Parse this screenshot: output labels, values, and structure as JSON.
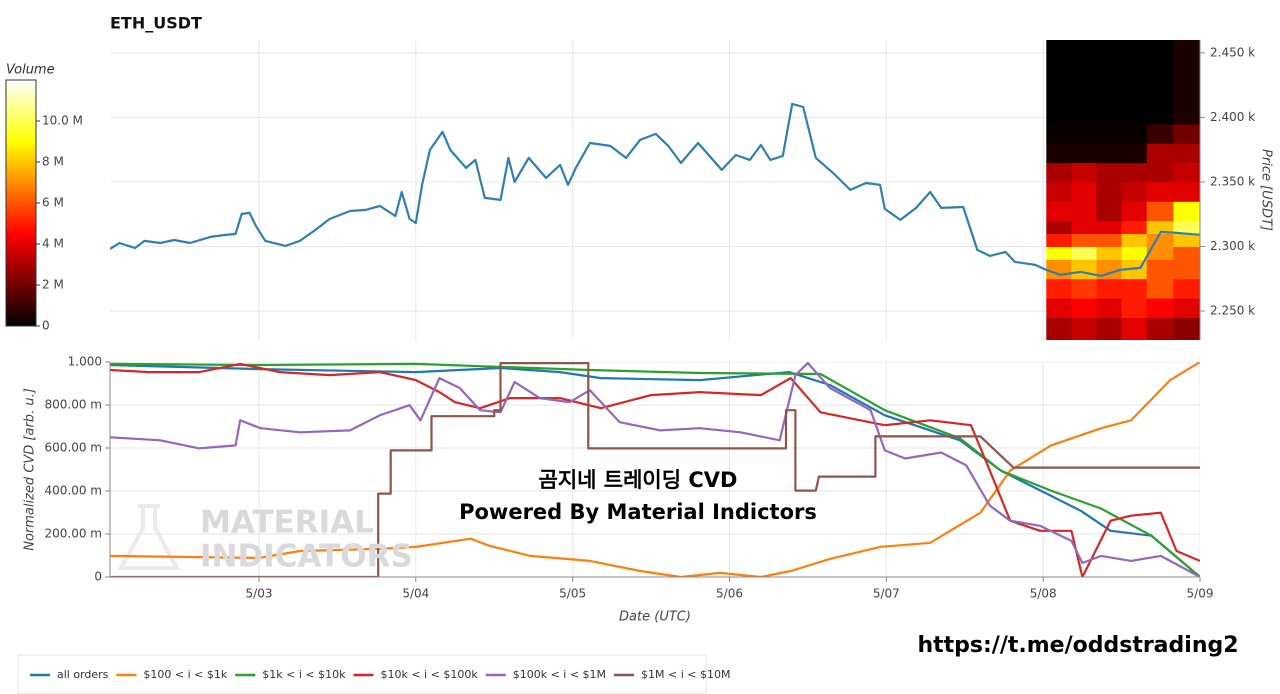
{
  "chart_data": [
    {
      "type": "line",
      "title": "ETH_USDT",
      "y_label": "Price [USDT]",
      "y_axis_side": "right",
      "grid": true,
      "xlim": [
        -0.95,
        6.0
      ],
      "ylim": [
        2227.5,
        2460
      ],
      "yticks": [
        {
          "value": 2250,
          "label": "2.250 k"
        },
        {
          "value": 2300,
          "label": "2.300 k"
        },
        {
          "value": 2350,
          "label": "2.350 k"
        },
        {
          "value": 2400,
          "label": "2.400 k"
        },
        {
          "value": 2450,
          "label": "2.450 k"
        }
      ],
      "heatmap": {
        "colormap": "hot",
        "x": [
          5.02,
          5.18,
          5.34,
          5.5,
          5.66,
          5.83,
          6.0
        ],
        "y": [
          2227.5,
          2245,
          2260,
          2275,
          2290,
          2300,
          2310,
          2320,
          2335,
          2350,
          2365,
          2380,
          2395,
          2460
        ],
        "values": [
          [
            3,
            3.5,
            3,
            4,
            3,
            2.5
          ],
          [
            4,
            4.5,
            4,
            5,
            4.5,
            4
          ],
          [
            5,
            5.5,
            5,
            5,
            6,
            5
          ],
          [
            7,
            8,
            7,
            8,
            6,
            6
          ],
          [
            9,
            10,
            8,
            9,
            7,
            6
          ],
          [
            5,
            6,
            6,
            8,
            7,
            8
          ],
          [
            3,
            4,
            4,
            5,
            8,
            10
          ],
          [
            4,
            4,
            3,
            4,
            6,
            9
          ],
          [
            3.5,
            4,
            3,
            3.5,
            4,
            4
          ],
          [
            3,
            3.5,
            3,
            3,
            3,
            3.5
          ],
          [
            0.5,
            0.5,
            0.5,
            0.5,
            3,
            3
          ],
          [
            0.2,
            0.2,
            0.2,
            0.2,
            1,
            2
          ],
          [
            0,
            0,
            0,
            0,
            0,
            0.5
          ]
        ]
      },
      "colorbar": {
        "label": "Volume",
        "lim": [
          0,
          12
        ],
        "ticks": [
          0,
          {
            "value": 2,
            "label": "2 M"
          },
          {
            "value": 4,
            "label": "4 M"
          },
          {
            "value": 6,
            "label": "6 M"
          },
          {
            "value": 8,
            "label": "8 M"
          },
          {
            "value": 10,
            "label": "10.0 M"
          }
        ]
      },
      "series": [
        {
          "name": "Price",
          "color": "#2f7fb0",
          "x": [
            -0.95,
            -0.89,
            -0.79,
            -0.73,
            -0.63,
            -0.54,
            -0.44,
            -0.31,
            -0.22,
            -0.15,
            -0.11,
            -0.06,
            -0.02,
            0.04,
            0.17,
            0.26,
            0.36,
            0.45,
            0.58,
            0.68,
            0.77,
            0.87,
            0.91,
            0.96,
            1.0,
            1.04,
            1.09,
            1.17,
            1.22,
            1.32,
            1.38,
            1.44,
            1.54,
            1.59,
            1.63,
            1.72,
            1.83,
            1.92,
            1.97,
            2.02,
            2.11,
            2.24,
            2.34,
            2.43,
            2.53,
            2.61,
            2.69,
            2.8,
            2.95,
            3.04,
            3.13,
            3.2,
            3.26,
            3.34,
            3.4,
            3.47,
            3.55,
            3.66,
            3.77,
            3.87,
            3.96,
            3.99,
            4.09,
            4.19,
            4.28,
            4.35,
            4.49,
            4.58,
            4.66,
            4.76,
            4.82,
            4.95,
            5.02,
            5.11,
            5.24,
            5.37,
            5.49,
            5.62,
            5.75,
            5.85,
            6.0
          ],
          "values": [
            2298.1,
            2302.7,
            2298.8,
            2304.3,
            2302.7,
            2305.0,
            2302.7,
            2307.4,
            2308.9,
            2309.7,
            2325.2,
            2326.0,
            2315.9,
            2304.3,
            2300.4,
            2304.3,
            2312.8,
            2321.3,
            2327.5,
            2328.3,
            2331.4,
            2323.6,
            2342.2,
            2321.3,
            2318.2,
            2347.7,
            2374.8,
            2388.8,
            2374.8,
            2360.9,
            2367.1,
            2337.6,
            2336.1,
            2368.6,
            2350.0,
            2368.6,
            2353.1,
            2363.2,
            2347.7,
            2360.9,
            2380.2,
            2377.9,
            2368.6,
            2382.6,
            2387.2,
            2377.9,
            2364.7,
            2380.2,
            2359.3,
            2370.9,
            2367.1,
            2378.7,
            2367.1,
            2370.2,
            2410.5,
            2408.1,
            2368.6,
            2357.0,
            2343.8,
            2349.2,
            2347.7,
            2329.1,
            2320.6,
            2329.9,
            2342.2,
            2329.9,
            2330.6,
            2297.3,
            2292.7,
            2295.8,
            2288.0,
            2285.7,
            2281.8,
            2278.0,
            2280.3,
            2277.2,
            2281.8,
            2283.4,
            2311.3,
            2310.5,
            2309.0
          ]
        }
      ]
    },
    {
      "type": "line",
      "x_label": "Date (UTC)",
      "y_label": "Normalized CVD [arb. u.]",
      "grid": true,
      "legend": "bottom-left",
      "xlim": [
        -0.95,
        6.0
      ],
      "ylim": [
        0,
        1
      ],
      "xticks": [
        {
          "value": 0,
          "label": "5/03"
        },
        {
          "value": 1,
          "label": "5/04"
        },
        {
          "value": 2,
          "label": "5/05"
        },
        {
          "value": 3,
          "label": "5/06"
        },
        {
          "value": 4,
          "label": "5/07"
        },
        {
          "value": 5,
          "label": "5/08"
        },
        {
          "value": 6,
          "label": "5/09"
        }
      ],
      "yticks": [
        0,
        {
          "value": 0.2,
          "label": "200.00 m"
        },
        {
          "value": 0.4,
          "label": "400.00 m"
        },
        {
          "value": 0.6,
          "label": "600.00 m"
        },
        {
          "value": 0.8,
          "label": "800.00 m"
        },
        {
          "value": 1,
          "label": "1.000"
        }
      ],
      "annotations": [
        "곰지네 트레이딩 CVD",
        "Powered By Material Indictors"
      ],
      "watermark": [
        "MATERIAL",
        "INDICATORS"
      ],
      "series": [
        {
          "name": "all orders",
          "color": "#1f77b4",
          "x": [
            -0.95,
            0,
            1.0,
            1.54,
            1.92,
            2.18,
            2.81,
            3.38,
            3.64,
            3.99,
            4.47,
            4.73,
            5.24,
            5.43,
            5.69,
            6.0
          ],
          "values": [
            0.986,
            0.967,
            0.953,
            0.972,
            0.953,
            0.925,
            0.916,
            0.953,
            0.893,
            0.752,
            0.636,
            0.495,
            0.308,
            0.215,
            0.192,
            0
          ]
        },
        {
          "name": "$100 < i < $1k",
          "color": "#ff7f0e",
          "x": [
            -0.95,
            0,
            0.26,
            0.77,
            1.0,
            1.35,
            1.47,
            1.73,
            2.11,
            2.43,
            2.69,
            2.94,
            3.2,
            3.39,
            3.64,
            3.96,
            4.28,
            4.6,
            4.79,
            5.05,
            5.37,
            5.56,
            5.81,
            6.0
          ],
          "values": [
            0.098,
            0.089,
            0.121,
            0.131,
            0.14,
            0.178,
            0.145,
            0.098,
            0.075,
            0.028,
            0,
            0.019,
            0,
            0.028,
            0.084,
            0.14,
            0.159,
            0.299,
            0.495,
            0.612,
            0.692,
            0.729,
            0.916,
            1.0
          ]
        },
        {
          "name": "$1k < i < $10k",
          "color": "#2ca02c",
          "x": [
            -0.95,
            0,
            1.0,
            2.11,
            2.81,
            3.58,
            3.99,
            4.47,
            4.73,
            5.05,
            5.37,
            5.69,
            6.0
          ],
          "values": [
            0.991,
            0.986,
            0.991,
            0.963,
            0.949,
            0.944,
            0.776,
            0.645,
            0.495,
            0.402,
            0.318,
            0.192,
            0
          ]
        },
        {
          "name": "$10k < i < $100k",
          "color": "#d62728",
          "x": [
            -0.95,
            -0.7,
            -0.38,
            -0.12,
            0.13,
            0.45,
            0.77,
            1.0,
            1.15,
            1.25,
            1.41,
            1.6,
            1.92,
            2.18,
            2.5,
            2.81,
            3.2,
            3.39,
            3.58,
            3.77,
            3.99,
            4.28,
            4.54,
            4.66,
            4.79,
            4.98,
            5.18,
            5.25,
            5.43,
            5.56,
            5.75,
            5.85,
            6.0
          ],
          "values": [
            0.963,
            0.953,
            0.953,
            0.991,
            0.953,
            0.939,
            0.953,
            0.916,
            0.86,
            0.813,
            0.785,
            0.832,
            0.832,
            0.785,
            0.846,
            0.86,
            0.846,
            0.925,
            0.766,
            0.738,
            0.706,
            0.729,
            0.706,
            0.495,
            0.262,
            0.215,
            0.215,
            0,
            0.262,
            0.285,
            0.299,
            0.121,
            0.075
          ]
        },
        {
          "name": "$100k < i < $1M",
          "color": "#9467bd",
          "x": [
            -0.95,
            -0.63,
            -0.38,
            -0.15,
            -0.12,
            0.01,
            0.26,
            0.58,
            0.77,
            0.96,
            1.03,
            1.15,
            1.28,
            1.41,
            1.54,
            1.63,
            1.79,
            1.98,
            2.11,
            2.3,
            2.56,
            2.81,
            3.07,
            3.32,
            3.42,
            3.5,
            3.64,
            3.9,
            3.99,
            4.12,
            4.35,
            4.51,
            4.66,
            4.79,
            4.98,
            5.18,
            5.25,
            5.37,
            5.56,
            5.75,
            6.0
          ],
          "values": [
            0.65,
            0.636,
            0.598,
            0.612,
            0.729,
            0.692,
            0.673,
            0.682,
            0.752,
            0.799,
            0.729,
            0.925,
            0.879,
            0.776,
            0.766,
            0.907,
            0.832,
            0.813,
            0.869,
            0.72,
            0.682,
            0.692,
            0.673,
            0.636,
            0.939,
            0.995,
            0.879,
            0.776,
            0.589,
            0.551,
            0.579,
            0.519,
            0.332,
            0.262,
            0.238,
            0.168,
            0.065,
            0.098,
            0.075,
            0.098,
            0
          ]
        },
        {
          "name": "$1M < i < $10M",
          "color": "#8c564b",
          "x": [
            -0.95,
            0.76,
            0.76,
            0.84,
            0.84,
            1.1,
            1.1,
            1.5,
            1.5,
            1.54,
            1.54,
            2.1,
            2.1,
            3.36,
            3.36,
            3.42,
            3.42,
            3.55,
            3.57,
            3.93,
            3.93,
            4.6,
            4.81,
            6.0
          ],
          "values": [
            0,
            0,
            0.388,
            0.388,
            0.589,
            0.589,
            0.748,
            0.748,
            0.776,
            0.776,
            0.995,
            0.995,
            0.598,
            0.598,
            0.776,
            0.776,
            0.402,
            0.402,
            0.467,
            0.467,
            0.654,
            0.654,
            0.509,
            0.509
          ]
        }
      ]
    }
  ],
  "footer": "https://t.me/oddstrading2"
}
